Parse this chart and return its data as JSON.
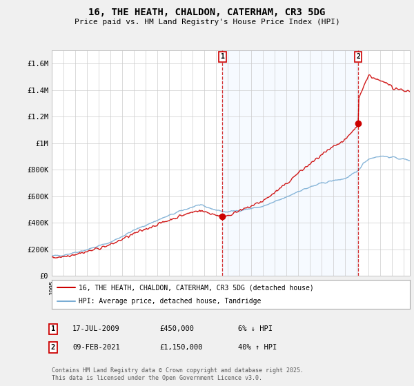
{
  "title_line1": "16, THE HEATH, CHALDON, CATERHAM, CR3 5DG",
  "title_line2": "Price paid vs. HM Land Registry's House Price Index (HPI)",
  "legend_label_red": "16, THE HEATH, CHALDON, CATERHAM, CR3 5DG (detached house)",
  "legend_label_blue": "HPI: Average price, detached house, Tandridge",
  "annotation1_label": "1",
  "annotation1_date": "17-JUL-2009",
  "annotation1_price": "£450,000",
  "annotation1_hpi": "6% ↓ HPI",
  "annotation2_label": "2",
  "annotation2_date": "09-FEB-2021",
  "annotation2_price": "£1,150,000",
  "annotation2_hpi": "40% ↑ HPI",
  "footer": "Contains HM Land Registry data © Crown copyright and database right 2025.\nThis data is licensed under the Open Government Licence v3.0.",
  "xmin": 1995,
  "xmax": 2025.5,
  "ymin": 0,
  "ymax": 1700000,
  "yticks": [
    0,
    200000,
    400000,
    600000,
    800000,
    1000000,
    1200000,
    1400000,
    1600000
  ],
  "ytick_labels": [
    "£0",
    "£200K",
    "£400K",
    "£600K",
    "£800K",
    "£1M",
    "£1.2M",
    "£1.4M",
    "£1.6M"
  ],
  "vline1_x": 2009.54,
  "vline2_x": 2021.1,
  "sale1_x": 2009.54,
  "sale1_y": 450000,
  "sale2_x": 2021.1,
  "sale2_y": 1150000,
  "red_color": "#cc0000",
  "blue_color": "#7aadd4",
  "vline_color": "#cc0000",
  "shade_color": "#ddeeff",
  "background_color": "#f0f0f0",
  "plot_bg_color": "#ffffff"
}
